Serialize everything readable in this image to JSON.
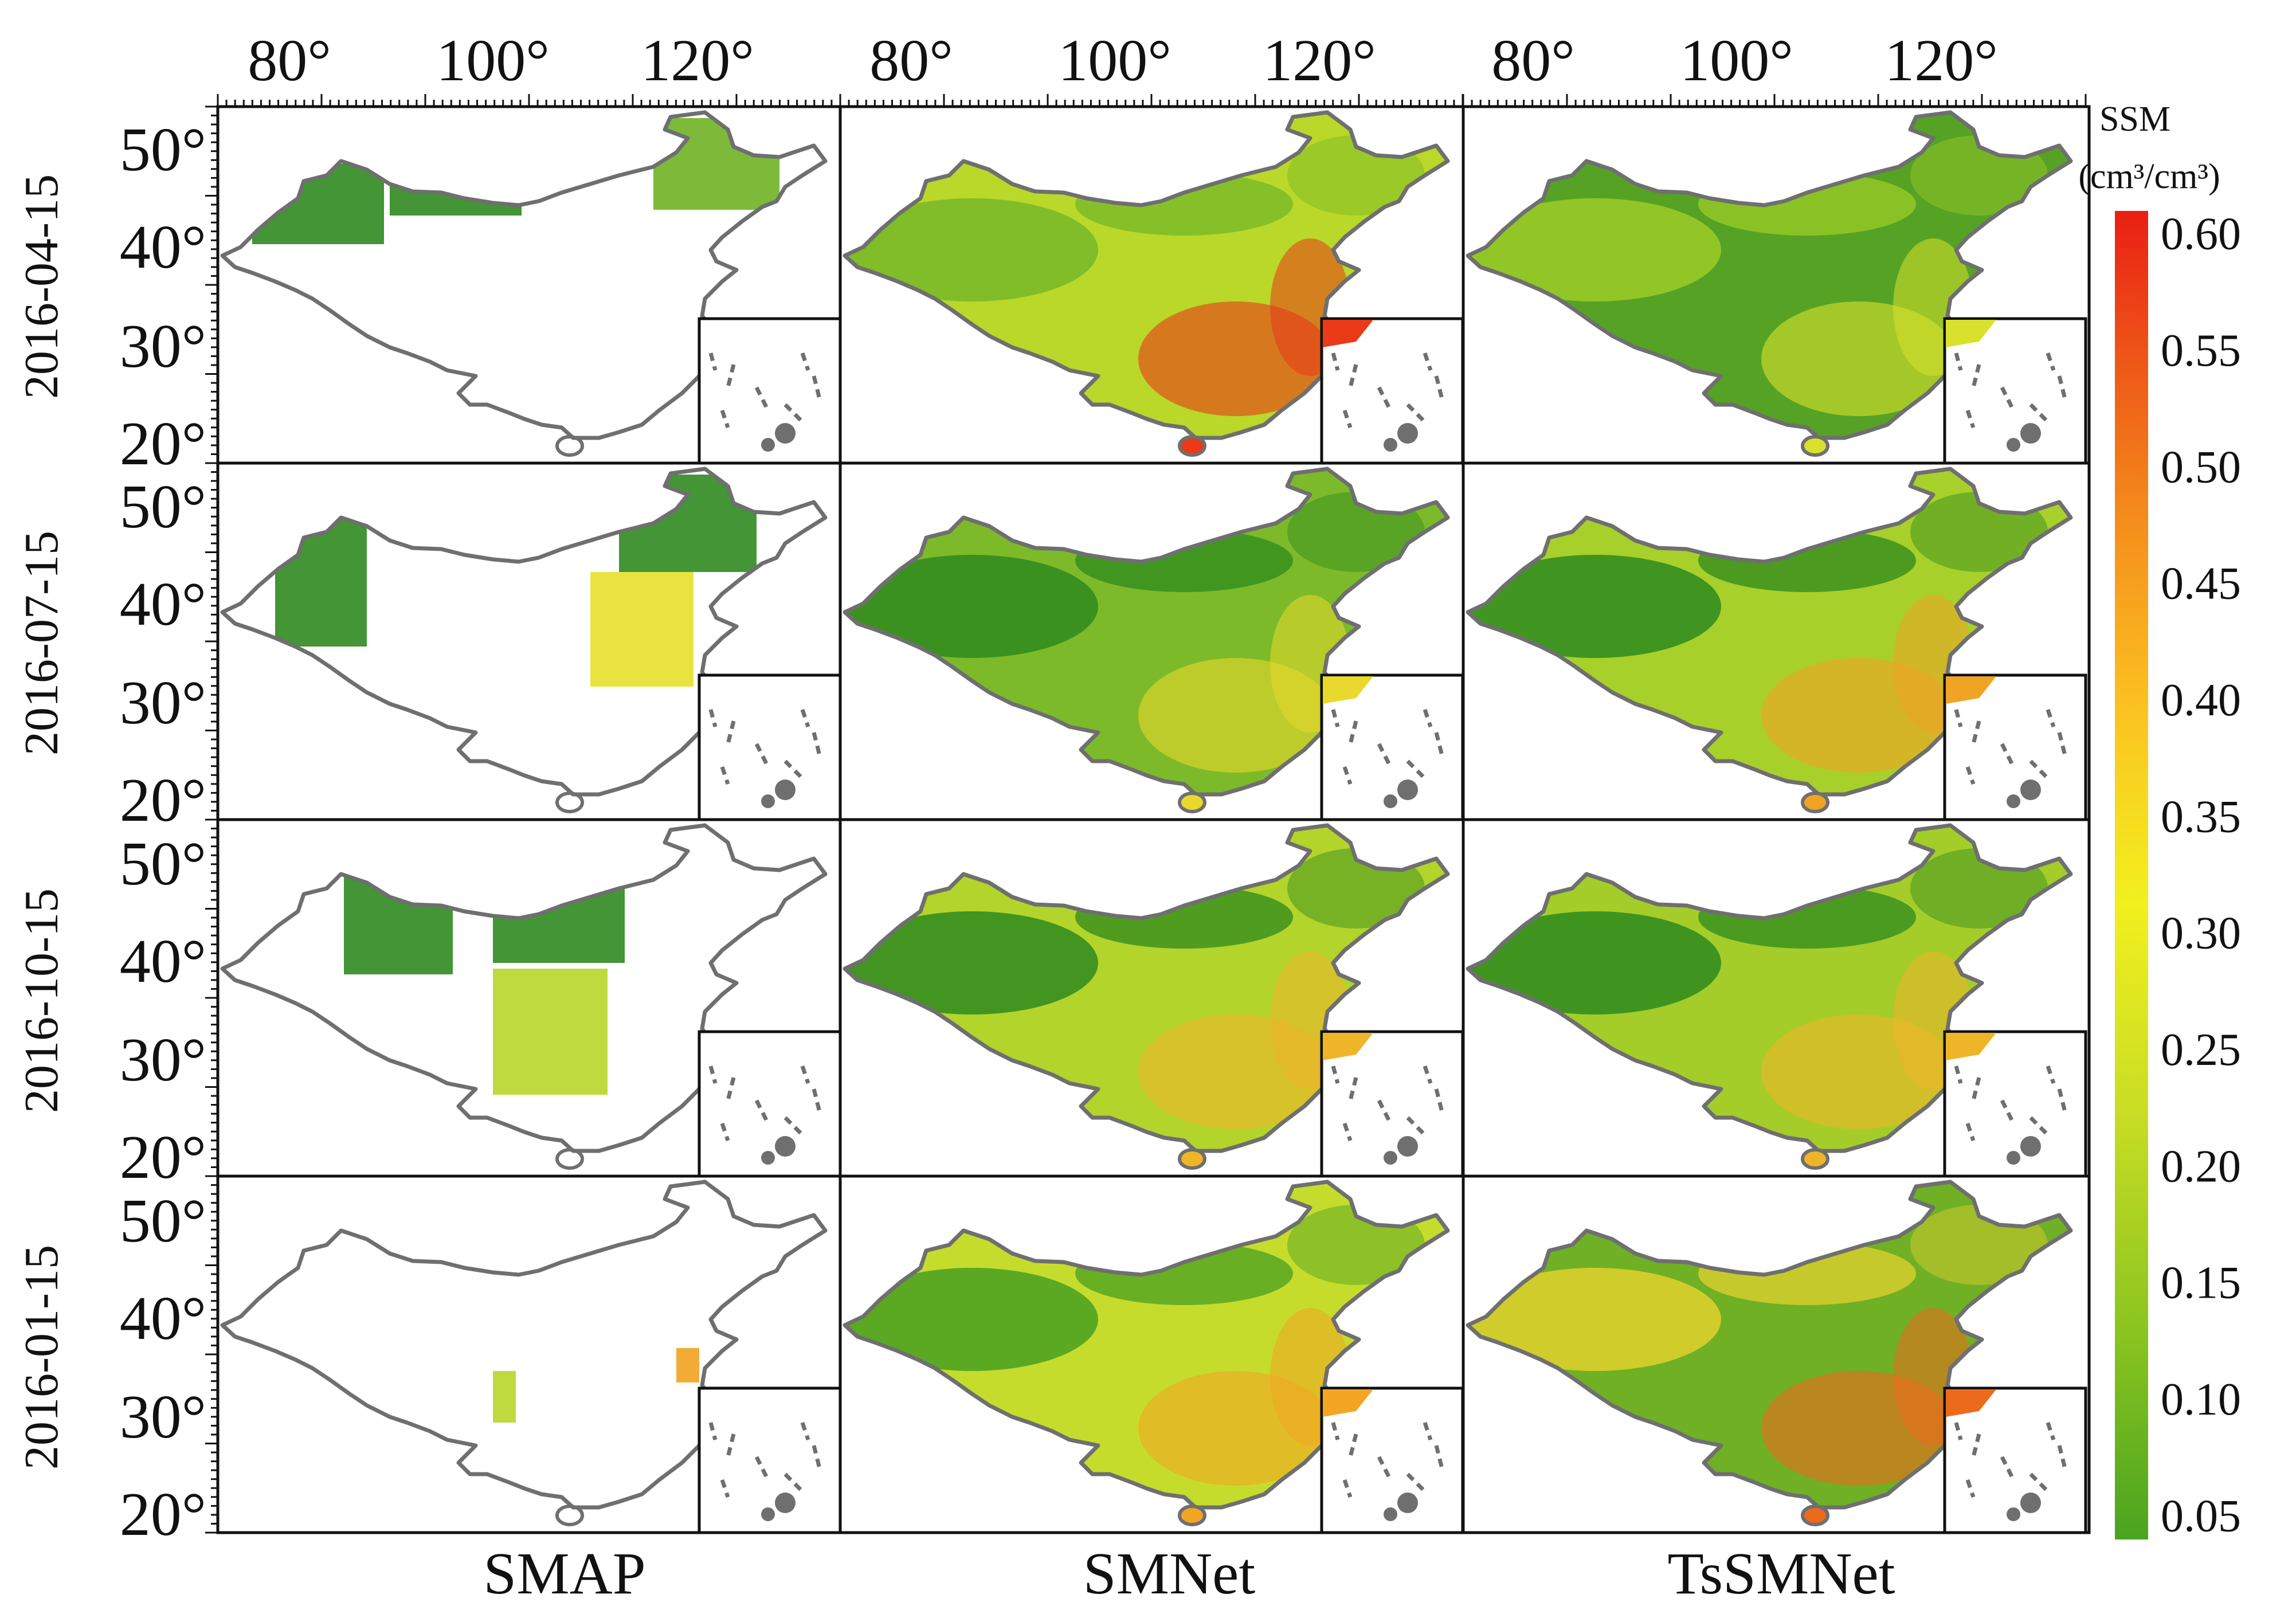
{
  "longitude_labels": [
    "80°",
    "100°",
    "120°"
  ],
  "latitude_labels": [
    "50°",
    "40°",
    "30°",
    "20°"
  ],
  "row_dates": [
    "2016-04-15",
    "2016-07-15",
    "2016-10-15",
    "2016-01-15"
  ],
  "column_titles": [
    "SMAP",
    "SMNet",
    "TsSMNet"
  ],
  "colorbar": {
    "title_line1": "SSM",
    "title_line2": "(cm³/cm³)",
    "tick_labels": [
      "0.60",
      "0.55",
      "0.50",
      "0.45",
      "0.40",
      "0.35",
      "0.30",
      "0.25",
      "0.20",
      "0.15",
      "0.10",
      "0.05"
    ],
    "gradient_colors": [
      "#4aa41f",
      "#8cc520",
      "#c8dd24",
      "#f2f01e",
      "#fbc421",
      "#f5901c",
      "#ee5a18",
      "#ea1f14"
    ],
    "range": [
      0.04,
      0.61
    ]
  },
  "map_colors": {
    "dry_green": "#2f8a1f",
    "mid_green": "#6fb325",
    "yellow_green": "#b8d62a",
    "yellow": "#e7e02c",
    "orange": "#f2a222",
    "red": "#e63b16",
    "outline": "#6f6f6f"
  },
  "panels": [
    {
      "row": 0,
      "col": 0,
      "fill": "none"
    },
    {
      "row": 0,
      "col": 1,
      "fill": "#b9d829",
      "patch_a": "#76b828",
      "patch_b": "#ea3a17"
    },
    {
      "row": 0,
      "col": 2,
      "fill": "#56a224",
      "patch_a": "#9ccc27",
      "patch_b": "#d9e12c"
    },
    {
      "row": 1,
      "col": 0,
      "fill": "none"
    },
    {
      "row": 1,
      "col": 1,
      "fill": "#7dba29",
      "patch_a": "#2e8a1e",
      "patch_b": "#e8d92c"
    },
    {
      "row": 1,
      "col": 2,
      "fill": "#a8d02a",
      "patch_a": "#2e8a1e",
      "patch_b": "#f0a324"
    },
    {
      "row": 2,
      "col": 0,
      "fill": "none"
    },
    {
      "row": 2,
      "col": 1,
      "fill": "#b3d42b",
      "patch_a": "#2e8a1e",
      "patch_b": "#efb529"
    },
    {
      "row": 2,
      "col": 2,
      "fill": "#a4cd2a",
      "patch_a": "#2e8a1e",
      "patch_b": "#efb529"
    },
    {
      "row": 3,
      "col": 0,
      "fill": "none"
    },
    {
      "row": 3,
      "col": 1,
      "fill": "#c6dc2d",
      "patch_a": "#48a022",
      "patch_b": "#f2a623"
    },
    {
      "row": 3,
      "col": 2,
      "fill": "#6fb025",
      "patch_a": "#e2d12d",
      "patch_b": "#ec6a1c"
    }
  ]
}
